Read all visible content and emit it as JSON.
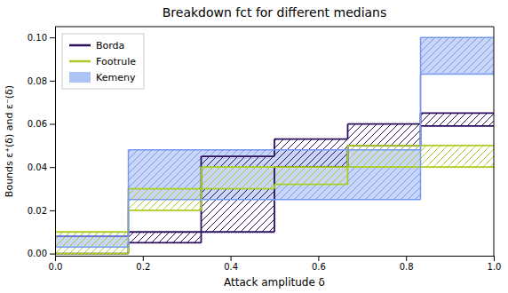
{
  "chart_data": {
    "type": "step_band",
    "title": "Breakdown fct for different medians",
    "xlabel": "Attack amplitude δ",
    "ylabel": "Bounds ε⁺(δ) and ε⁻(δ)",
    "xlim": [
      0.0,
      1.0
    ],
    "ylim": [
      -0.001,
      0.105
    ],
    "xticks": [
      {
        "value": 0.0,
        "label": "0.0"
      },
      0.2,
      0.4,
      0.6,
      0.8,
      {
        "value": 1.0,
        "label": "1.0"
      }
    ],
    "yticks": [
      {
        "value": 0.0,
        "label": "0.00"
      },
      0.02,
      0.04,
      0.06,
      0.08,
      {
        "value": 0.1,
        "label": "0.10"
      }
    ],
    "legend": "upper left",
    "series": [
      {
        "name": "Borda",
        "type": "band",
        "color": "#2d0f5e",
        "segments": [
          {
            "x0": 0.0,
            "x1": 0.167,
            "ylo": 0.0,
            "yhi": 0.008
          },
          {
            "x0": 0.167,
            "x1": 0.333,
            "ylo": 0.005,
            "yhi": 0.01
          },
          {
            "x0": 0.333,
            "x1": 0.5,
            "ylo": 0.01,
            "yhi": 0.045
          },
          {
            "x0": 0.5,
            "x1": 0.667,
            "ylo": 0.04,
            "yhi": 0.053
          },
          {
            "x0": 0.667,
            "x1": 0.833,
            "ylo": 0.05,
            "yhi": 0.06
          },
          {
            "x0": 0.833,
            "x1": 1.0,
            "ylo": 0.059,
            "yhi": 0.065
          }
        ]
      },
      {
        "name": "Footrule",
        "type": "band",
        "color": "#aacc22",
        "segments": [
          {
            "x0": 0.0,
            "x1": 0.167,
            "ylo": 0.0,
            "yhi": 0.01
          },
          {
            "x0": 0.167,
            "x1": 0.333,
            "ylo": 0.02,
            "yhi": 0.03
          },
          {
            "x0": 0.333,
            "x1": 0.5,
            "ylo": 0.03,
            "yhi": 0.04
          },
          {
            "x0": 0.5,
            "x1": 0.667,
            "ylo": 0.032,
            "yhi": 0.04
          },
          {
            "x0": 0.667,
            "x1": 0.833,
            "ylo": 0.04,
            "yhi": 0.05
          },
          {
            "x0": 0.833,
            "x1": 1.0,
            "ylo": 0.04,
            "yhi": 0.05
          }
        ]
      },
      {
        "name": "Kemeny",
        "type": "area",
        "color": "#7799ee",
        "segments": [
          {
            "x0": 0.0,
            "x1": 0.167,
            "ylo": 0.003,
            "yhi": 0.008
          },
          {
            "x0": 0.167,
            "x1": 0.5,
            "ylo": 0.025,
            "yhi": 0.048
          },
          {
            "x0": 0.5,
            "x1": 0.833,
            "ylo": 0.025,
            "yhi": 0.048
          },
          {
            "x0": 0.833,
            "x1": 1.0,
            "ylo": 0.083,
            "yhi": 0.1
          }
        ]
      }
    ]
  }
}
